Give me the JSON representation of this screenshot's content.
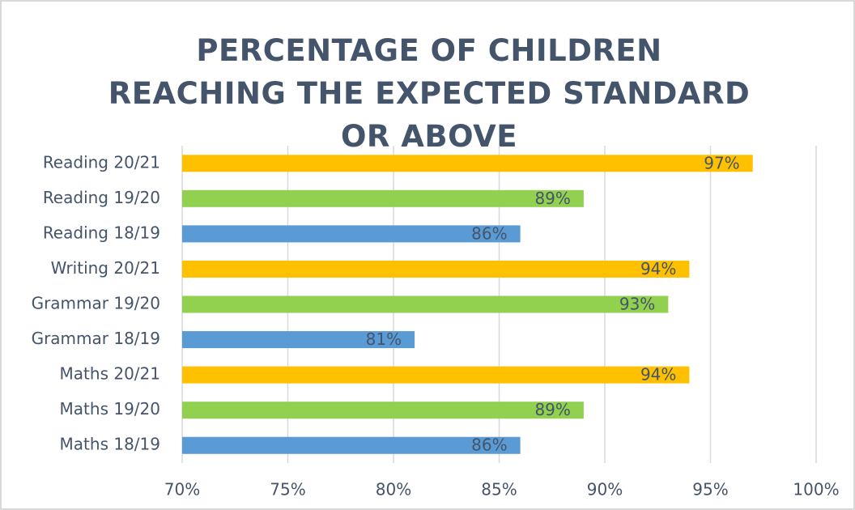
{
  "chart_data": {
    "type": "bar",
    "orientation": "horizontal",
    "title": "PERCENTAGE OF CHILDREN REACHING THE EXPECTED STANDARD OR ABOVE",
    "categories": [
      "Reading 20/21",
      "Reading 19/20",
      "Reading 18/19",
      "Writing 20/21",
      "Grammar 19/20",
      "Grammar 18/19",
      "Maths 20/21",
      "Maths 19/20",
      "Maths 18/19"
    ],
    "values": [
      97,
      89,
      86,
      94,
      93,
      81,
      94,
      89,
      86
    ],
    "value_labels": [
      "97%",
      "89%",
      "86%",
      "94%",
      "93%",
      "81%",
      "94%",
      "89%",
      "86%"
    ],
    "colors": [
      "#FFC000",
      "#92D050",
      "#5B9BD5",
      "#FFC000",
      "#92D050",
      "#5B9BD5",
      "#FFC000",
      "#92D050",
      "#5B9BD5"
    ],
    "xlim": [
      70,
      100
    ],
    "xticks": [
      {
        "value": 70,
        "label": "70%"
      },
      {
        "value": 75,
        "label": "75%"
      },
      {
        "value": 80,
        "label": "80%"
      },
      {
        "value": 85,
        "label": "85%"
      },
      {
        "value": 90,
        "label": "90%"
      },
      {
        "value": 95,
        "label": "95%"
      },
      {
        "value": 100,
        "label": "100%"
      }
    ],
    "grid": true
  }
}
